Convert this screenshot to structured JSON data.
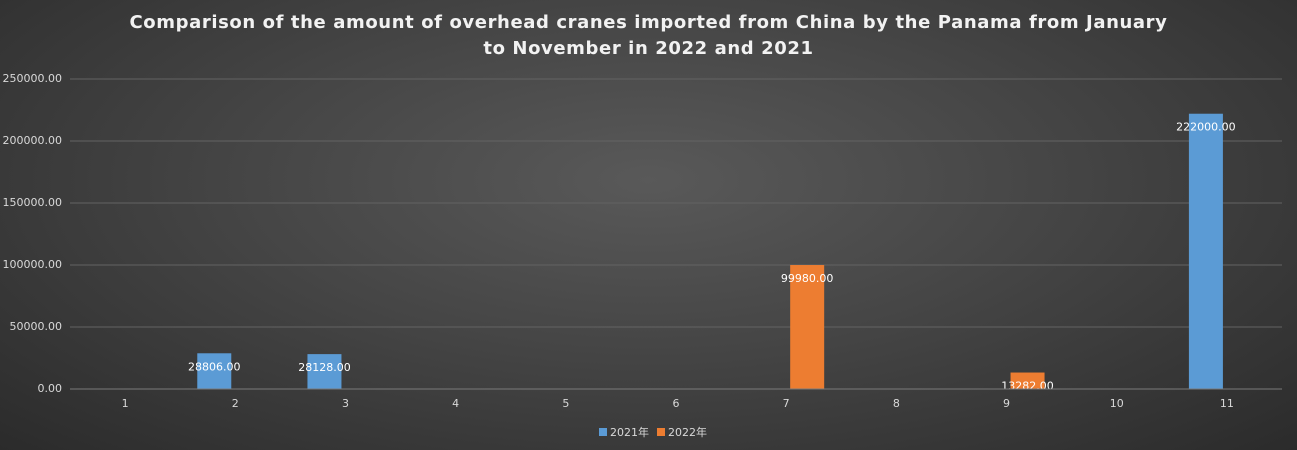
{
  "chart_data": {
    "type": "bar",
    "title": "Comparison of the amount of overhead cranes imported from China by the Panama from January to November in 2022 and 2021",
    "categories": [
      "1",
      "2",
      "3",
      "4",
      "5",
      "6",
      "7",
      "8",
      "9",
      "10",
      "11"
    ],
    "series": [
      {
        "name": "2021年",
        "color": "#5b9bd5",
        "values": [
          null,
          28806,
          28128,
          null,
          null,
          null,
          null,
          null,
          null,
          null,
          222000
        ],
        "value_labels": [
          null,
          "28806.00",
          "28128.00",
          null,
          null,
          null,
          null,
          null,
          null,
          null,
          "222000.00"
        ]
      },
      {
        "name": "2022年",
        "color": "#ed7d31",
        "values": [
          null,
          null,
          null,
          null,
          null,
          null,
          99980,
          null,
          13282,
          null,
          null
        ],
        "value_labels": [
          null,
          null,
          null,
          null,
          null,
          null,
          "99980.00",
          null,
          "13282.00",
          null,
          null
        ]
      }
    ],
    "ylim": [
      0,
      250000
    ],
    "yticks": [
      {
        "value": 0,
        "label": "0.00"
      },
      {
        "value": 50000,
        "label": "50000.00"
      },
      {
        "value": 100000,
        "label": "100000.00"
      },
      {
        "value": 150000,
        "label": "150000.00"
      },
      {
        "value": 200000,
        "label": "200000.00"
      },
      {
        "value": 250000,
        "label": "250000.00"
      }
    ],
    "grid": true
  }
}
